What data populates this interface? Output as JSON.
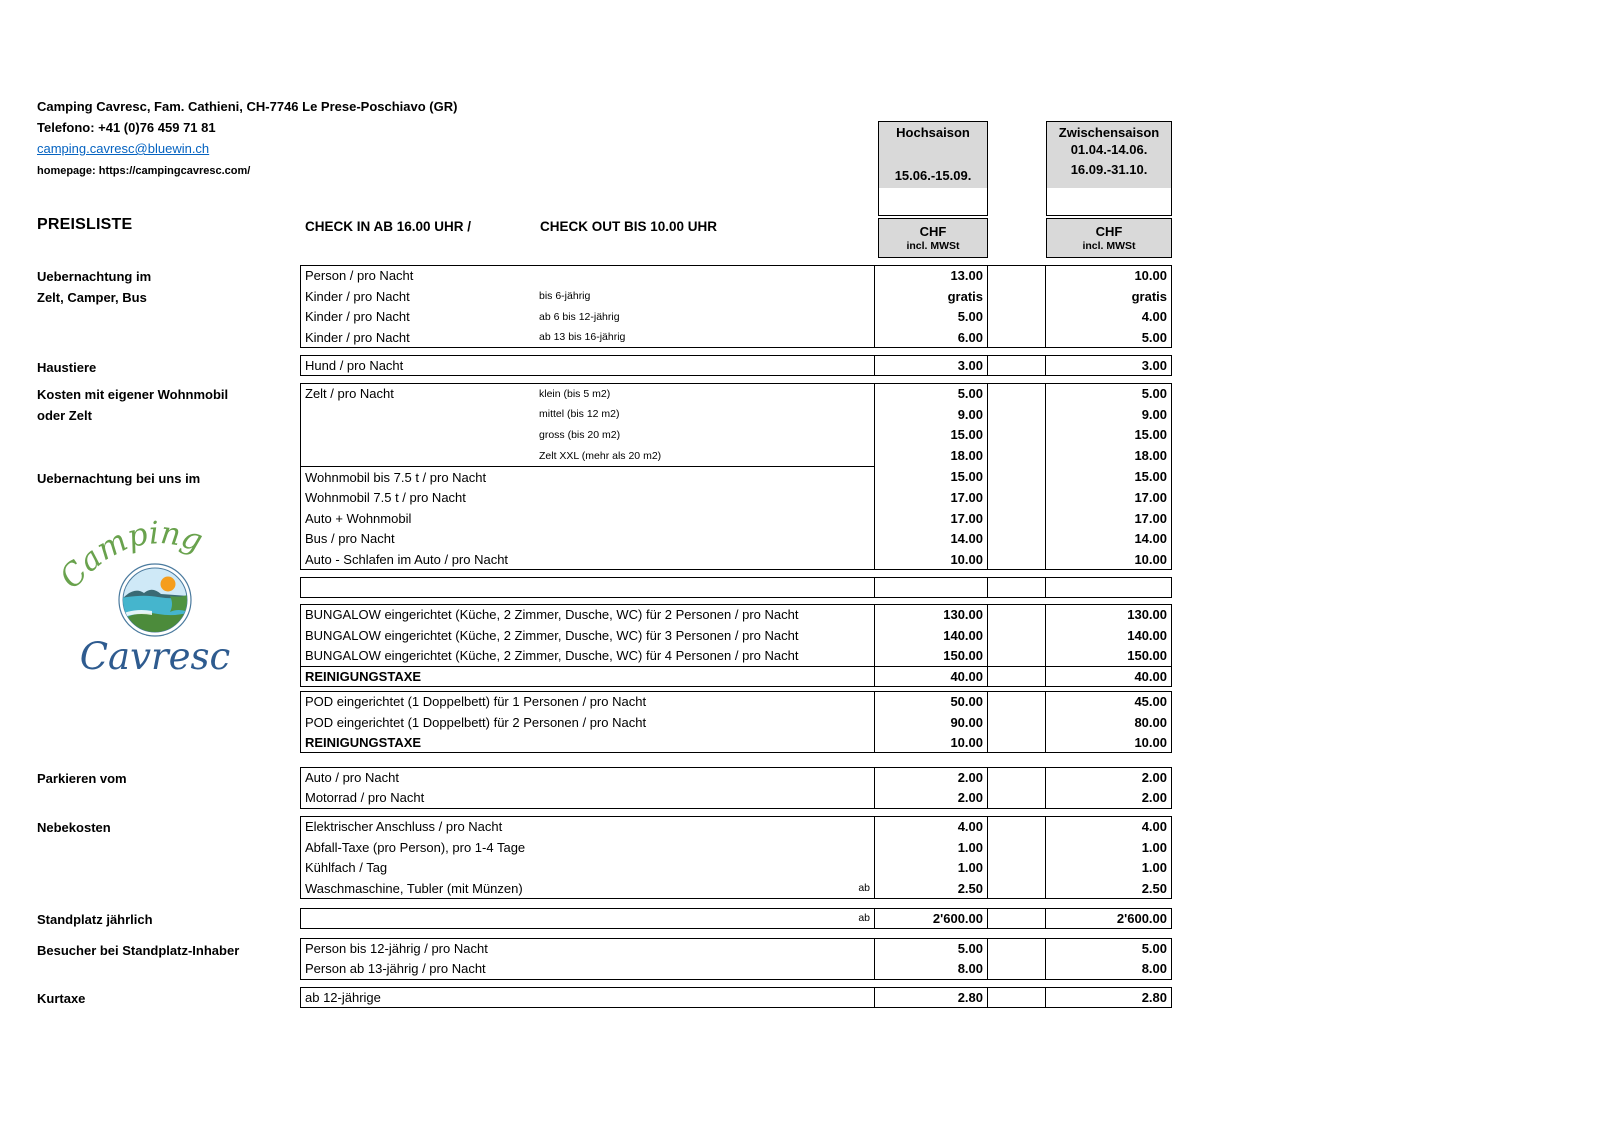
{
  "header": {
    "company": "Camping Cavresc, Fam. Cathieni, CH-7746 Le Prese-Poschiavo (GR)",
    "phone": "Telefono: +41 (0)76 459 71 81",
    "email": "camping.cavresc@bluewin.ch",
    "homepage": "homepage: https://campingcavresc.com/"
  },
  "pricelist": {
    "title": "PREISLISTE",
    "checkin": "CHECK IN AB 16.00 UHR  /",
    "checkout": "CHECK OUT BIS 10.00 UHR"
  },
  "seasons": [
    {
      "title": "Hochsaison",
      "date1": "",
      "date2": "15.06.-15.09.",
      "currency": "CHF",
      "vat": "incl. MWSt"
    },
    {
      "title": "Zwischensaison",
      "date1": "01.04.-14.06.",
      "date2": "16.09.-31.10.",
      "currency": "CHF",
      "vat": "incl. MWSt"
    }
  ],
  "sidebar": [
    {
      "id": "uebernachtung-zelt",
      "lines": [
        "Uebernachtung im",
        "Zelt, Camper, Bus"
      ]
    },
    {
      "id": "haustiere",
      "lines": [
        "Haustiere"
      ]
    },
    {
      "id": "kosten-eigene",
      "lines": [
        "Kosten mit eigener Wohnmobil",
        "oder Zelt"
      ]
    },
    {
      "id": "uebernachtung-bei-uns",
      "lines": [
        "Uebernachtung bei uns im"
      ]
    },
    {
      "id": "parkieren",
      "lines": [
        "Parkieren vom"
      ]
    },
    {
      "id": "nebekosten",
      "lines": [
        "Nebekosten"
      ]
    },
    {
      "id": "standplatz",
      "lines": [
        "Standplatz jährlich"
      ]
    },
    {
      "id": "besucher",
      "lines": [
        "Besucher bei Standplatz-Inhaber"
      ]
    },
    {
      "id": "kurtaxe",
      "lines": [
        "Kurtaxe"
      ]
    }
  ],
  "logo": {
    "word_top": "Camping",
    "word_bottom": "Cavresc",
    "colors": {
      "green": "#69a24d",
      "blue": "#2e5b8f",
      "sun": "#f59d1c",
      "water": "#45b5cd",
      "hill": "#4c8b3b",
      "sky": "#cfe9f7",
      "ring": "#4a7a9e",
      "mountain": "#3a6a74"
    }
  },
  "table": {
    "groups": [
      {
        "id": "uebernachtung",
        "rows": [
          {
            "label": "Person / pro Nacht",
            "p1": "13.00",
            "p2": "10.00"
          },
          {
            "label": "Kinder / pro Nacht",
            "sub": "bis 6-jährig",
            "p1": "gratis",
            "p2": "gratis"
          },
          {
            "label": "Kinder / pro Nacht",
            "sub": "ab 6 bis 12-jährig",
            "p1": "5.00",
            "p2": "4.00"
          },
          {
            "label": "Kinder / pro Nacht",
            "sub": "ab 13 bis 16-jährig",
            "p1": "6.00",
            "p2": "5.00"
          }
        ]
      },
      {
        "id": "haustiere",
        "rows": [
          {
            "label": "Hund / pro Nacht",
            "p1": "3.00",
            "p2": "3.00"
          }
        ]
      },
      {
        "id": "zelt-wohnmobil",
        "rows": [
          {
            "label": "Zelt / pro Nacht",
            "sub": "klein (bis 5 m2)",
            "p1": "5.00",
            "p2": "5.00"
          },
          {
            "label": "",
            "sub": "mittel (bis 12 m2)",
            "p1": "9.00",
            "p2": "9.00"
          },
          {
            "label": "",
            "sub": "gross (bis 20 m2)",
            "p1": "15.00",
            "p2": "15.00"
          },
          {
            "label": "",
            "sub": "Zelt XXL (mehr als 20 m2)",
            "p1": "18.00",
            "p2": "18.00"
          },
          {
            "label": "Wohnmobil bis 7.5 t / pro Nacht",
            "p1": "15.00",
            "p2": "15.00",
            "innerTopDesc": true
          },
          {
            "label": "Wohnmobil 7.5 t / pro Nacht",
            "p1": "17.00",
            "p2": "17.00"
          },
          {
            "label": "Auto + Wohnmobil",
            "p1": "17.00",
            "p2": "17.00"
          },
          {
            "label": "Bus / pro Nacht",
            "p1": "14.00",
            "p2": "14.00"
          },
          {
            "label": "Auto - Schlafen im Auto / pro Nacht",
            "p1": "10.00",
            "p2": "10.00"
          }
        ]
      },
      {
        "id": "leer",
        "rows": [
          {
            "label": "",
            "p1": "",
            "p2": ""
          }
        ]
      },
      {
        "id": "bungalow",
        "rows": [
          {
            "label": "BUNGALOW eingerichtet (Küche, 2 Zimmer, Dusche, WC) für 2 Personen / pro Nacht",
            "p1": "130.00",
            "p2": "130.00"
          },
          {
            "label": "BUNGALOW eingerichtet (Küche, 2 Zimmer, Dusche, WC) für 3 Personen / pro Nacht",
            "p1": "140.00",
            "p2": "140.00"
          },
          {
            "label": "BUNGALOW eingerichtet (Küche, 2 Zimmer, Dusche, WC) für 4 Personen / pro Nacht",
            "p1": "150.00",
            "p2": "150.00"
          },
          {
            "label": "REINIGUNGSTAXE",
            "bold": true,
            "innerTopAll": true,
            "p1": "40.00",
            "p2": "40.00"
          }
        ]
      },
      {
        "id": "pod",
        "rows": [
          {
            "label": "POD eingerichtet (1 Doppelbett) für 1 Personen / pro Nacht",
            "p1": "50.00",
            "p2": "45.00"
          },
          {
            "label": "POD eingerichtet (1 Doppelbett) für 2 Personen / pro Nacht",
            "p1": "90.00",
            "p2": "80.00"
          },
          {
            "label": "REINIGUNGSTAXE",
            "bold": true,
            "p1": "10.00",
            "p2": "10.00"
          }
        ]
      },
      {
        "id": "parkieren",
        "rows": [
          {
            "label": "Auto / pro Nacht",
            "p1": "2.00",
            "p2": "2.00"
          },
          {
            "label": "Motorrad / pro Nacht",
            "p1": "2.00",
            "p2": "2.00"
          }
        ]
      },
      {
        "id": "nebekosten",
        "rows": [
          {
            "label": "Elektrischer Anschluss / pro Nacht",
            "p1": "4.00",
            "p2": "4.00"
          },
          {
            "label": "Abfall-Taxe (pro Person), pro 1-4 Tage",
            "p1": "1.00",
            "p2": "1.00"
          },
          {
            "label": "Kühlfach / Tag",
            "p1": "1.00",
            "p2": "1.00"
          },
          {
            "label": "Waschmaschine, Tubler (mit Münzen)",
            "ab": "ab",
            "p1": "2.50",
            "p2": "2.50"
          }
        ]
      },
      {
        "id": "standplatz",
        "rows": [
          {
            "label": "",
            "ab": "ab",
            "p1": "2'600.00",
            "p2": "2'600.00"
          }
        ]
      },
      {
        "id": "besucher",
        "rows": [
          {
            "label": "Person bis 12-jährig / pro Nacht",
            "p1": "5.00",
            "p2": "5.00"
          },
          {
            "label": "Person ab 13-jährig / pro Nacht",
            "p1": "8.00",
            "p2": "8.00"
          }
        ]
      },
      {
        "id": "kurtaxe",
        "rows": [
          {
            "label": "ab 12-jährige",
            "p1": "2.80",
            "p2": "2.80"
          }
        ]
      }
    ]
  }
}
